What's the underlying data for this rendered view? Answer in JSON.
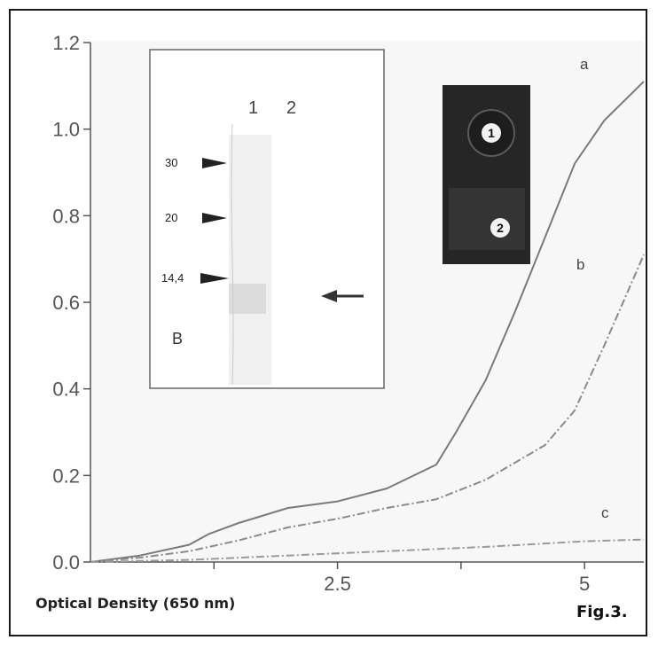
{
  "figure_label": "Fig.3.",
  "chart_data": {
    "type": "line",
    "xlabel": "Optical Density (650 nm)",
    "ylabel": "",
    "xlim": [
      0,
      5.6
    ],
    "ylim": [
      0,
      1.2
    ],
    "x_ticks": [
      1.25,
      2.5,
      3.75,
      5
    ],
    "x_tick_labels": [
      "",
      "2.5",
      "",
      "5"
    ],
    "y_tick_labels": [
      "0.0",
      "0.2",
      "0.4",
      "0.6",
      "0.8",
      "1.0",
      "1.2"
    ],
    "grid": false,
    "series": [
      {
        "name": "a",
        "style": "solid",
        "color": "#7a7a7a",
        "x": [
          0,
          0.5,
          1.0,
          1.2,
          1.5,
          2.0,
          2.5,
          3.0,
          3.5,
          3.7,
          4.0,
          4.3,
          4.6,
          4.9,
          5.2,
          5.6
        ],
        "y": [
          0.0,
          0.015,
          0.04,
          0.065,
          0.09,
          0.125,
          0.14,
          0.17,
          0.225,
          0.3,
          0.42,
          0.58,
          0.75,
          0.92,
          1.02,
          1.11
        ]
      },
      {
        "name": "b",
        "style": "dashed",
        "color": "#8a8a8a",
        "x": [
          0,
          0.5,
          1.0,
          1.5,
          2.0,
          2.5,
          3.0,
          3.5,
          4.0,
          4.3,
          4.6,
          4.9,
          5.2,
          5.6
        ],
        "y": [
          0.0,
          0.01,
          0.025,
          0.05,
          0.08,
          0.1,
          0.125,
          0.145,
          0.19,
          0.23,
          0.27,
          0.35,
          0.5,
          0.71
        ]
      },
      {
        "name": "c",
        "style": "dashed",
        "color": "#9a9a9a",
        "x": [
          0,
          1.0,
          2.0,
          3.0,
          4.0,
          5.0,
          5.6
        ],
        "y": [
          0.0,
          0.005,
          0.015,
          0.025,
          0.035,
          0.048,
          0.052
        ]
      }
    ]
  },
  "inset_gel": {
    "lane_labels": [
      "1",
      "2"
    ],
    "markers": [
      "30",
      "20",
      "14,4"
    ],
    "panel_letter": "B"
  },
  "inset_plate": {
    "wells": [
      "1",
      "2"
    ]
  }
}
